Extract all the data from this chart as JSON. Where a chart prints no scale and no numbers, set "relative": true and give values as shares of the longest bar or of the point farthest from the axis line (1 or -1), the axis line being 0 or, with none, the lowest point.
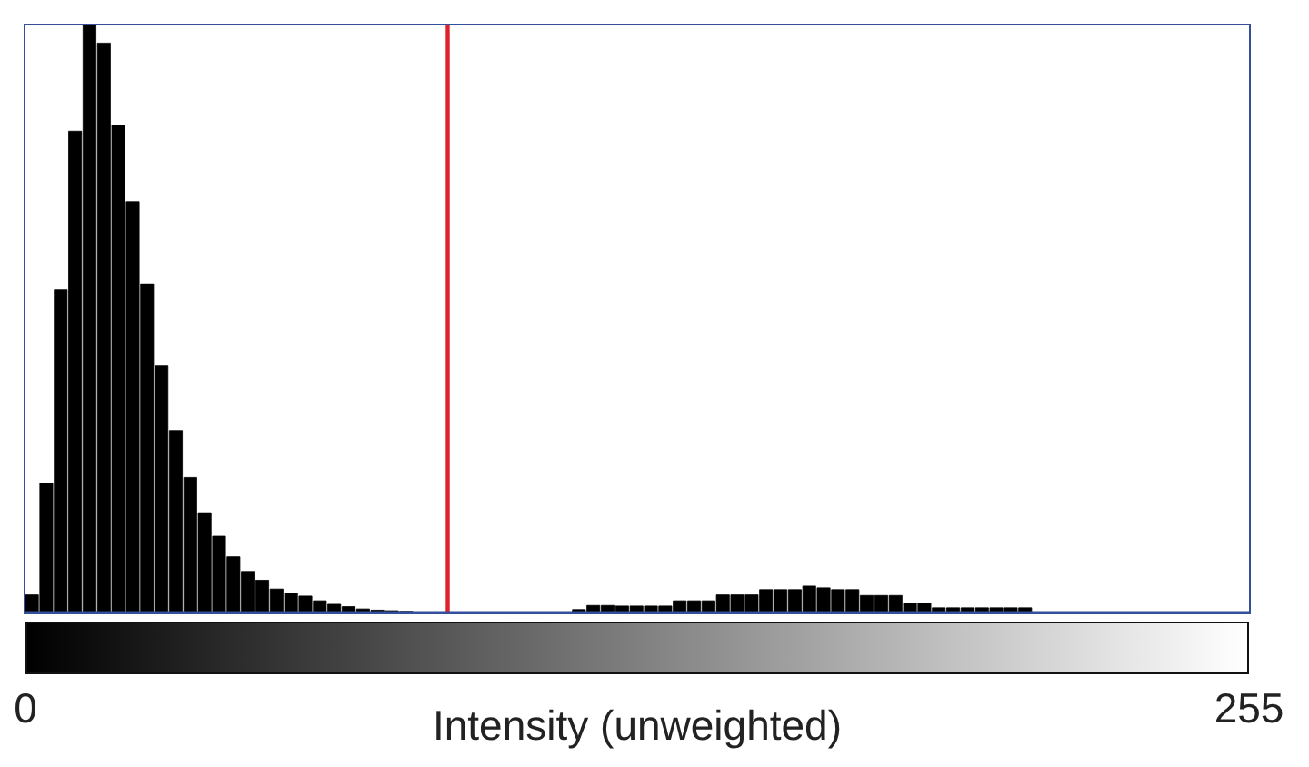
{
  "chart_data": {
    "type": "bar",
    "relative": true,
    "xlabel": "Intensity (unweighted)",
    "xlim": [
      0,
      255
    ],
    "xticks": [
      0,
      255
    ],
    "x": [
      1.5,
      4.5,
      7.5,
      10.5,
      13.5,
      16.5,
      19.5,
      22.5,
      25.5,
      28.5,
      31.5,
      34.5,
      37.5,
      40.5,
      43.5,
      46.5,
      49.5,
      52.5,
      55.5,
      58.5,
      61.5,
      64.5,
      67.5,
      70.5,
      73.5,
      76.5,
      79.5,
      82.5,
      85.5,
      88.5,
      91.5,
      94.5,
      97.5,
      100.5,
      103.5,
      106.5,
      109.5,
      112.5,
      115.5,
      118.5,
      121.5,
      124.5,
      127.5,
      130.5,
      133.5,
      136.5,
      139.5,
      142.5,
      145.5,
      148.5,
      151.5,
      154.5,
      157.5,
      160.5,
      163.5,
      166.5,
      169.5,
      172.5,
      175.5,
      178.5,
      181.5,
      184.5,
      187.5,
      190.5,
      193.5,
      196.5,
      199.5,
      202.5,
      205.5,
      208.5,
      211.5,
      214.5,
      217.5,
      220.5,
      223.5,
      226.5,
      229.5,
      232.5,
      235.5,
      238.5,
      241.5,
      244.5,
      247.5,
      250.5,
      253.5
    ],
    "values": [
      0.03,
      0.22,
      0.55,
      0.82,
      1,
      0.97,
      0.83,
      0.7,
      0.56,
      0.42,
      0.31,
      0.23,
      0.17,
      0.13,
      0.095,
      0.07,
      0.055,
      0.04,
      0.033,
      0.028,
      0.02,
      0.014,
      0.01,
      0.006,
      0.004,
      0.003,
      0.002,
      0,
      0,
      0,
      0,
      0,
      0,
      0,
      0,
      0,
      0,
      0,
      0.005,
      0.012,
      0.012,
      0.011,
      0.011,
      0.011,
      0.011,
      0.02,
      0.02,
      0.02,
      0.03,
      0.03,
      0.03,
      0.039,
      0.039,
      0.039,
      0.045,
      0.042,
      0.039,
      0.039,
      0.029,
      0.029,
      0.029,
      0.016,
      0.016,
      0.008,
      0.008,
      0.008,
      0.008,
      0.008,
      0.008,
      0.008,
      0,
      0,
      0,
      0,
      0,
      0,
      0,
      0,
      0,
      0,
      0,
      0,
      0,
      0,
      0
    ],
    "color": "#000000",
    "ref_lines": [
      {
        "axis": "x",
        "value": 88,
        "color": "#e0202a"
      }
    ]
  }
}
